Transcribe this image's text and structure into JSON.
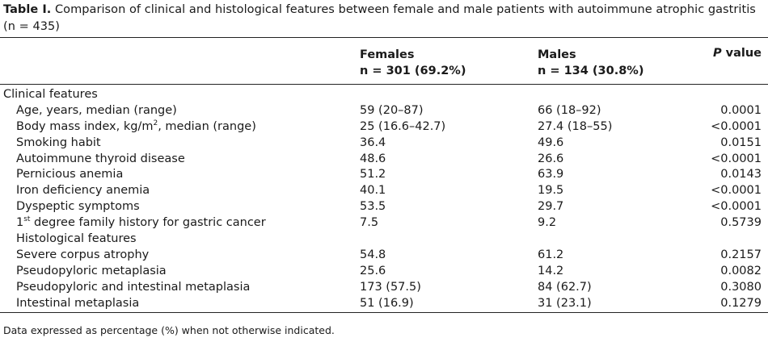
{
  "caption": {
    "label": "Table I.",
    "text": " Comparison of clinical and histological features between female and male patients with autoimmune atrophic gastritis (n = 435)"
  },
  "headers": {
    "females": "Females",
    "females_n": "n = 301 (69.2%)",
    "males": "Males",
    "males_n": "n = 134 (30.8%)",
    "p_italic": "P",
    "p_rest": " value"
  },
  "rows": [
    {
      "type": "section",
      "label": "Clinical features",
      "females": "",
      "males": "",
      "p": ""
    },
    {
      "type": "item",
      "label": "Age, years, median (range)",
      "females": "59 (20–87)",
      "males": "66 (18–92)",
      "p": "0.0001"
    },
    {
      "type": "item",
      "label_pre": "Body mass index, kg/m",
      "label_sup": "2",
      "label_post": ", median (range)",
      "females": "25 (16.6–42.7)",
      "males": "27.4 (18–55)",
      "p": "<0.0001"
    },
    {
      "type": "item",
      "label": "Smoking habit",
      "females": "36.4",
      "males": "49.6",
      "p": "0.0151"
    },
    {
      "type": "item",
      "label": "Autoimmune thyroid disease",
      "females": "48.6",
      "males": "26.6",
      "p": "<0.0001"
    },
    {
      "type": "item",
      "label": "Pernicious anemia",
      "females": "51.2",
      "males": "63.9",
      "p": "0.0143"
    },
    {
      "type": "item",
      "label": "Iron deficiency anemia",
      "females": "40.1",
      "males": "19.5",
      "p": "<0.0001"
    },
    {
      "type": "item",
      "label": "Dyspeptic symptoms",
      "females": "53.5",
      "males": "29.7",
      "p": "<0.0001"
    },
    {
      "type": "item",
      "label_pre": "1",
      "label_sup": "st",
      "label_post": " degree family history for gastric cancer",
      "females": "7.5",
      "males": "9.2",
      "p": "0.5739"
    },
    {
      "type": "item",
      "label": "Histological features",
      "females": "",
      "males": "",
      "p": ""
    },
    {
      "type": "item",
      "label": "Severe corpus atrophy",
      "females": "54.8",
      "males": "61.2",
      "p": "0.2157"
    },
    {
      "type": "item",
      "label": "Pseudopyloric metaplasia",
      "females": "25.6",
      "males": "14.2",
      "p": "0.0082"
    },
    {
      "type": "item",
      "label": "Pseudopyloric and intestinal metaplasia",
      "females": "173 (57.5)",
      "males": "84 (62.7)",
      "p": "0.3080"
    },
    {
      "type": "item",
      "label": "Intestinal metaplasia",
      "females": "51 (16.9)",
      "males": "31 (23.1)",
      "p": "0.1279"
    }
  ],
  "footnote": "Data expressed as percentage (%) when not otherwise indicated."
}
